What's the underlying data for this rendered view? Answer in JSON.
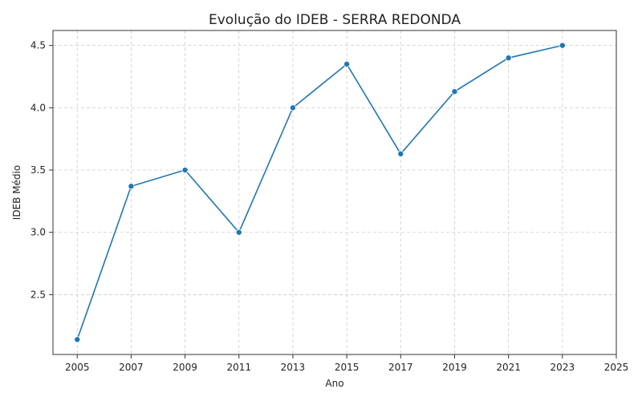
{
  "chart_data": {
    "type": "line",
    "title": "Evolução do IDEB - SERRA REDONDA",
    "xlabel": "Ano",
    "ylabel": "IDEB Médio",
    "x": [
      2005,
      2007,
      2009,
      2011,
      2013,
      2015,
      2017,
      2019,
      2021,
      2023
    ],
    "series": [
      {
        "values": [
          2.14,
          3.37,
          3.5,
          3.0,
          4.0,
          4.35,
          3.63,
          4.13,
          4.4,
          4.5
        ]
      }
    ],
    "xticks": [
      "2005",
      "2007",
      "2009",
      "2011",
      "2013",
      "2015",
      "2017",
      "2019",
      "2021",
      "2023",
      "2025"
    ],
    "yticks": [
      "2.5",
      "3.0",
      "3.5",
      "4.0",
      "4.5"
    ],
    "xlim": [
      2004.1,
      2025
    ],
    "ylim": [
      2.02,
      4.62
    ],
    "grid": true,
    "line_color": "#1f77b4"
  }
}
